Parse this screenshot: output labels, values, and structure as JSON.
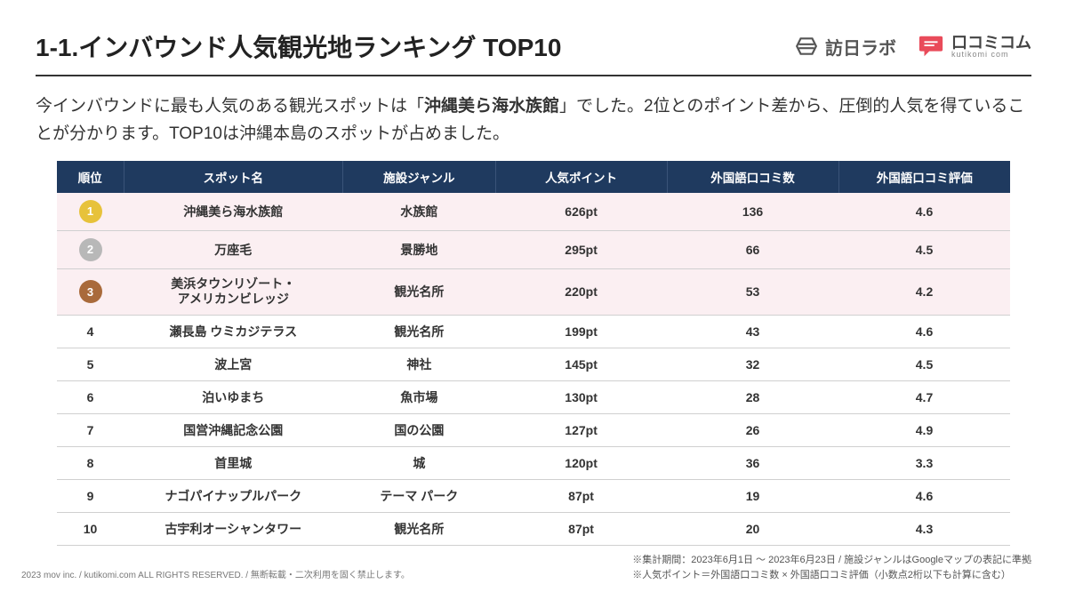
{
  "title": "1-1.インバウンド人気観光地ランキング TOP10",
  "logos": {
    "hounichi": "訪日ラボ",
    "kutikomi_main": "口コミコム",
    "kutikomi_sub": "kutikomi com"
  },
  "lead_pre": "今インバウンドに最も人気のある観光スポットは「",
  "lead_bold": "沖縄美ら海水族館",
  "lead_post": "」でした。2位とのポイント差から、圧倒的人気を得ていることが分かります。TOP10は沖縄本島のスポットが占めました。",
  "table": {
    "header_bg": "#1f3a5f",
    "header_color": "#ffffff",
    "top3_bg": "#fbeff2",
    "border_color": "#d0d0d0",
    "columns": [
      "順位",
      "スポット名",
      "施設ジャンル",
      "人気ポイント",
      "外国語口コミ数",
      "外国語口コミ評価"
    ],
    "rank_badge_colors": {
      "1": "#e7c23b",
      "2": "#b8b8b8",
      "3": "#a96a3b"
    },
    "rows": [
      {
        "rank": "1",
        "spot": "沖縄美ら海水族館",
        "genre": "水族館",
        "pt": "626pt",
        "cnt": "136",
        "rate": "4.6",
        "top3": true
      },
      {
        "rank": "2",
        "spot": "万座毛",
        "genre": "景勝地",
        "pt": "295pt",
        "cnt": "66",
        "rate": "4.5",
        "top3": true
      },
      {
        "rank": "3",
        "spot": "美浜タウンリゾート・\nアメリカンビレッジ",
        "genre": "観光名所",
        "pt": "220pt",
        "cnt": "53",
        "rate": "4.2",
        "top3": true
      },
      {
        "rank": "4",
        "spot": "瀬長島 ウミカジテラス",
        "genre": "観光名所",
        "pt": "199pt",
        "cnt": "43",
        "rate": "4.6",
        "top3": false
      },
      {
        "rank": "5",
        "spot": "波上宮",
        "genre": "神社",
        "pt": "145pt",
        "cnt": "32",
        "rate": "4.5",
        "top3": false
      },
      {
        "rank": "6",
        "spot": "泊いゆまち",
        "genre": "魚市場",
        "pt": "130pt",
        "cnt": "28",
        "rate": "4.7",
        "top3": false
      },
      {
        "rank": "7",
        "spot": "国営沖縄記念公園",
        "genre": "国の公園",
        "pt": "127pt",
        "cnt": "26",
        "rate": "4.9",
        "top3": false
      },
      {
        "rank": "8",
        "spot": "首里城",
        "genre": "城",
        "pt": "120pt",
        "cnt": "36",
        "rate": "3.3",
        "top3": false
      },
      {
        "rank": "9",
        "spot": "ナゴパイナップルパーク",
        "genre": "テーマ パーク",
        "pt": "87pt",
        "cnt": "19",
        "rate": "4.6",
        "top3": false
      },
      {
        "rank": "10",
        "spot": "古宇利オーシャンタワー",
        "genre": "観光名所",
        "pt": "87pt",
        "cnt": "20",
        "rate": "4.3",
        "top3": false
      }
    ]
  },
  "notes": {
    "line1": "※集計期間：2023年6月1日 ～ 2023年6月23日 / 施設ジャンルはGoogleマップの表記に準拠",
    "line2": "※人気ポイント＝外国語口コミ数 × 外国語口コミ評価（小数点2桁以下も計算に含む）"
  },
  "copyright": "2023 mov inc. / kutikomi.com ALL RIGHTS RESERVED. / 無断転載・二次利用を固く禁止します。"
}
